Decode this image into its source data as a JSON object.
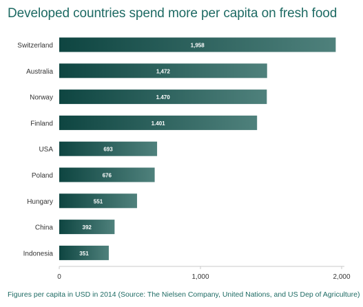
{
  "title": "Developed countries spend more per capita on fresh food",
  "footnote": "Figures per capita in USD in 2014 (Source: The Nielsen Company, United Nations, and US Dep of Agriculture)",
  "colors": {
    "title": "#1d6a63",
    "bar_start": "#0e4541",
    "bar_end": "#4f817c",
    "axis": "#c8c8c8",
    "tick_text": "#333333",
    "value_text": "#ffffff"
  },
  "chart_data": {
    "type": "bar",
    "orientation": "horizontal",
    "categories": [
      "Switzerland",
      "Australia",
      "Norway",
      "Finland",
      "USA",
      "Poland",
      "Hungary",
      "China",
      "Indonesia"
    ],
    "values": [
      1958,
      1472,
      1470,
      1401,
      693,
      676,
      551,
      392,
      351
    ],
    "value_labels": [
      "1,958",
      "1,472",
      "1.470",
      "1.401",
      "693",
      "676",
      "551",
      "392",
      "351"
    ],
    "xlim": [
      0,
      2000
    ],
    "xticks": [
      0,
      1000,
      2000
    ],
    "xtick_labels": [
      "0",
      "1,000",
      "2,000"
    ],
    "grid": false
  }
}
